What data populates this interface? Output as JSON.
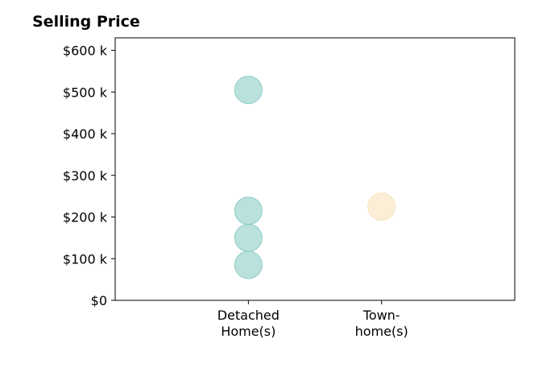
{
  "chart_data": {
    "type": "scatter",
    "title": "Selling Price",
    "xlabel": "",
    "ylabel": "",
    "categories": [
      [
        "Detached",
        "Home(s)"
      ],
      [
        "Town-",
        "home(s)"
      ]
    ],
    "y_ticks": [
      {
        "value": 0,
        "label": "$0"
      },
      {
        "value": 100000,
        "label": "$100 k"
      },
      {
        "value": 200000,
        "label": "$200 k"
      },
      {
        "value": 300000,
        "label": "$300 k"
      },
      {
        "value": 400000,
        "label": "$400 k"
      },
      {
        "value": 500000,
        "label": "$500 k"
      },
      {
        "value": 600000,
        "label": "$600 k"
      }
    ],
    "ylim": [
      0,
      630000
    ],
    "xlim": [
      -1,
      2
    ],
    "grid": false,
    "legend": "none",
    "series": [
      {
        "category_index": 0,
        "color": "#83C9C1",
        "values": [
          505000,
          215000,
          150000,
          85000
        ]
      },
      {
        "category_index": 1,
        "color": "#F5E1B5",
        "values": [
          225000
        ]
      }
    ]
  }
}
